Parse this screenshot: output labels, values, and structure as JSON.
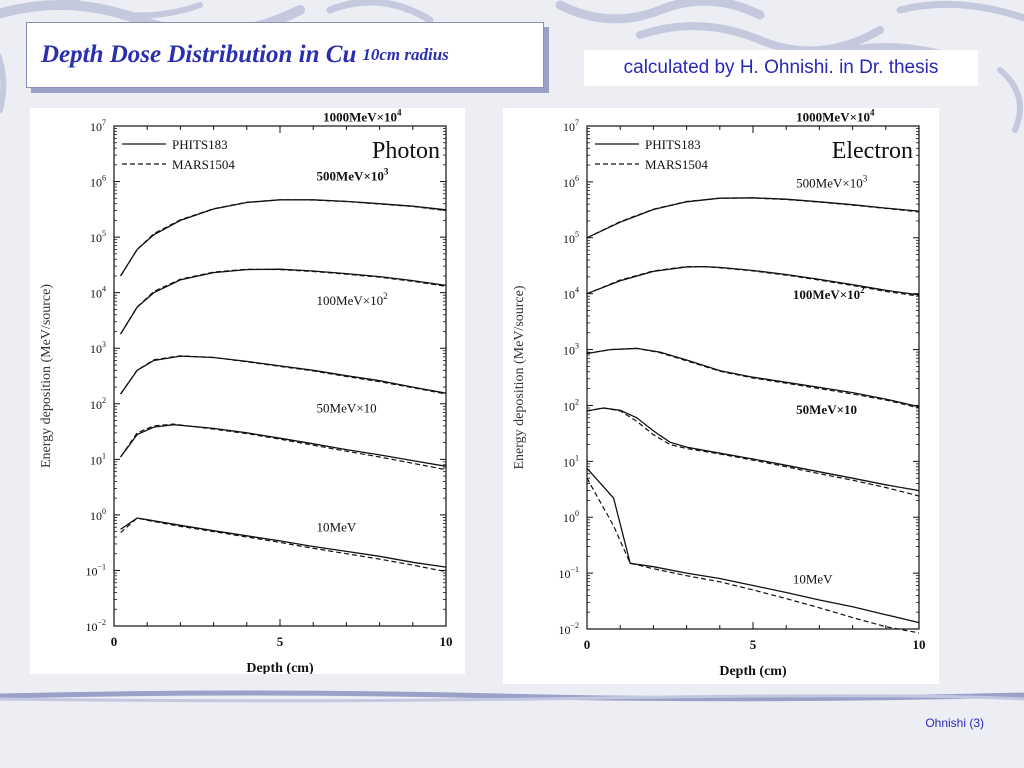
{
  "slide": {
    "title": "Depth Dose Distribution in Cu",
    "title_suffix": "10cm radius",
    "credit": "calculated by H. Ohnishi. in Dr. thesis",
    "footer": "Ohnishi (3)",
    "colors": {
      "title": "#2a2fb0",
      "credit": "#2828b8",
      "background": "#eceef3",
      "accent": "#8a8fb8"
    }
  },
  "chart_data": [
    {
      "type": "line",
      "title": "Photon",
      "xlabel": "Depth (cm)",
      "ylabel": "Energy deposition (MeV/source)",
      "xlim": [
        0,
        10
      ],
      "ylim": [
        0.01,
        10000000
      ],
      "yscale": "log",
      "xticks": [
        "0",
        "5",
        "10"
      ],
      "yticks": [
        {
          "base": "10",
          "exp": "7"
        },
        {
          "base": "10",
          "exp": "6"
        },
        {
          "base": "10",
          "exp": "5"
        },
        {
          "base": "10",
          "exp": "4"
        },
        {
          "base": "10",
          "exp": "3"
        },
        {
          "base": "10",
          "exp": "2"
        },
        {
          "base": "10",
          "exp": "1"
        },
        {
          "base": "10",
          "exp": "0"
        },
        {
          "base": "10",
          "exp": "−1"
        },
        {
          "base": "10",
          "exp": "−2"
        }
      ],
      "legend": [
        "PHITS183",
        "MARS1504"
      ],
      "legend_position": "top-left",
      "curves": [
        {
          "label": "1000MeV×10",
          "label_sup": "4",
          "label_bold": true,
          "label_at": [
            6.3,
            12000000
          ],
          "x": [
            0.2,
            0.7,
            1.2,
            2,
            3,
            4,
            5,
            6,
            7,
            8,
            9,
            10
          ],
          "phits": [
            20000,
            60000,
            110000,
            200000,
            320000,
            420000,
            470000,
            470000,
            440000,
            400000,
            360000,
            310000
          ],
          "mars": [
            20000,
            60000,
            115000,
            205000,
            325000,
            425000,
            470000,
            465000,
            435000,
            395000,
            355000,
            300000
          ]
        },
        {
          "label": "500MeV×10",
          "label_sup": "3",
          "label_bold": true,
          "label_at": [
            6.1,
            1050000
          ],
          "x": [
            0.2,
            0.7,
            1.2,
            2,
            3,
            4,
            5,
            6,
            7,
            8,
            9,
            10
          ],
          "phits": [
            1800,
            5500,
            10000,
            17000,
            23000,
            26000,
            26500,
            24500,
            22000,
            19500,
            16500,
            13500
          ],
          "mars": [
            1800,
            5500,
            10500,
            17500,
            23500,
            26500,
            26000,
            24000,
            21500,
            19000,
            16000,
            13000
          ]
        },
        {
          "label": "100MeV×10",
          "label_sup": "2",
          "label_bold": false,
          "label_at": [
            6.1,
            6000
          ],
          "x": [
            0.2,
            0.7,
            1.2,
            2,
            3,
            4,
            5,
            6,
            7,
            8,
            9,
            10
          ],
          "phits": [
            150,
            400,
            600,
            720,
            680,
            580,
            480,
            400,
            320,
            260,
            200,
            155
          ],
          "mars": [
            150,
            400,
            620,
            730,
            680,
            570,
            470,
            390,
            310,
            250,
            195,
            150
          ]
        },
        {
          "label": "50MeV×10",
          "label_sup": "",
          "label_bold": false,
          "label_at": [
            6.1,
            70
          ],
          "x": [
            0.2,
            0.7,
            1.2,
            1.8,
            3,
            4,
            5,
            6,
            7,
            8,
            9,
            10
          ],
          "phits": [
            11,
            28,
            38,
            42,
            36,
            30,
            24,
            19,
            15,
            12,
            9.5,
            7.5
          ],
          "mars": [
            11,
            30,
            40,
            43,
            35,
            29,
            23,
            18,
            14,
            11,
            8.5,
            6.5
          ]
        },
        {
          "label": "10MeV",
          "label_sup": "",
          "label_bold": false,
          "label_at": [
            6.1,
            0.5
          ],
          "x": [
            0.2,
            0.7,
            1,
            2,
            3,
            4,
            5,
            6,
            7,
            8,
            9,
            10
          ],
          "phits": [
            0.55,
            0.88,
            0.82,
            0.65,
            0.52,
            0.42,
            0.34,
            0.27,
            0.22,
            0.18,
            0.14,
            0.115
          ],
          "mars": [
            0.48,
            0.88,
            0.8,
            0.62,
            0.5,
            0.4,
            0.32,
            0.25,
            0.2,
            0.16,
            0.125,
            0.095
          ]
        }
      ]
    },
    {
      "type": "line",
      "title": "Electron",
      "xlabel": "Depth (cm)",
      "ylabel": "Energy deposition (MeV/source)",
      "xlim": [
        0,
        10
      ],
      "ylim": [
        0.01,
        10000000
      ],
      "yscale": "log",
      "xticks": [
        "0",
        "5",
        "10"
      ],
      "yticks": [
        {
          "base": "10",
          "exp": "7"
        },
        {
          "base": "10",
          "exp": "6"
        },
        {
          "base": "10",
          "exp": "5"
        },
        {
          "base": "10",
          "exp": "4"
        },
        {
          "base": "10",
          "exp": "3"
        },
        {
          "base": "10",
          "exp": "2"
        },
        {
          "base": "10",
          "exp": "1"
        },
        {
          "base": "10",
          "exp": "0"
        },
        {
          "base": "10",
          "exp": "−1"
        },
        {
          "base": "10",
          "exp": "−2"
        }
      ],
      "legend": [
        "PHITS183",
        "MARS1504"
      ],
      "legend_position": "top-left",
      "curves": [
        {
          "label": "1000MeV×10",
          "label_sup": "4",
          "label_bold": true,
          "label_at": [
            6.3,
            12000000
          ],
          "x": [
            0,
            1,
            2,
            3,
            4,
            5,
            6,
            7,
            8,
            9,
            10
          ],
          "phits": [
            100000,
            190000,
            320000,
            440000,
            510000,
            520000,
            490000,
            440000,
            390000,
            340000,
            300000
          ],
          "mars": [
            100000,
            195000,
            325000,
            445000,
            510000,
            515000,
            485000,
            435000,
            385000,
            335000,
            290000
          ]
        },
        {
          "label": "500MeV×10",
          "label_sup": "3",
          "label_bold": false,
          "label_at": [
            6.3,
            800000
          ],
          "x": [
            0,
            1,
            2,
            3,
            3.5,
            4,
            5,
            6,
            7,
            8,
            9,
            10
          ],
          "phits": [
            10000,
            17000,
            25000,
            30000,
            30500,
            29500,
            26000,
            22000,
            18000,
            14500,
            11500,
            9500
          ],
          "mars": [
            10000,
            17500,
            25500,
            30500,
            30500,
            29000,
            25500,
            21500,
            17500,
            14000,
            11000,
            9000
          ]
        },
        {
          "label": "100MeV×10",
          "label_sup": "2",
          "label_bold": true,
          "label_at": [
            6.2,
            8000
          ],
          "x": [
            0,
            0.7,
            1.5,
            2.2,
            3,
            4,
            5,
            6,
            7,
            8,
            9,
            10
          ],
          "phits": [
            850,
            1000,
            1050,
            900,
            650,
            420,
            320,
            260,
            210,
            170,
            130,
            95
          ],
          "mars": [
            850,
            1000,
            1050,
            880,
            630,
            410,
            310,
            250,
            200,
            160,
            125,
            90
          ]
        },
        {
          "label": "50MeV×10",
          "label_sup": "",
          "label_bold": true,
          "label_at": [
            6.3,
            70
          ],
          "x": [
            0,
            0.5,
            1,
            1.5,
            2,
            2.5,
            3,
            4,
            5,
            6,
            7,
            8,
            9,
            10
          ],
          "phits": [
            80,
            90,
            82,
            60,
            35,
            22,
            18,
            14,
            11,
            8.5,
            6.5,
            5,
            3.8,
            3
          ],
          "mars": [
            80,
            90,
            80,
            52,
            30,
            20,
            17,
            13.5,
            10.5,
            8,
            6,
            4.6,
            3.4,
            2.4
          ]
        },
        {
          "label": "10MeV",
          "label_sup": "",
          "label_bold": false,
          "label_at": [
            6.2,
            0.065
          ],
          "x": [
            0,
            0.8,
            1.3,
            2,
            3,
            4,
            5,
            6,
            7,
            8,
            9,
            10
          ],
          "phits": [
            7.5,
            2.2,
            0.15,
            0.13,
            0.1,
            0.08,
            0.06,
            0.045,
            0.033,
            0.025,
            0.018,
            0.013
          ],
          "mars": [
            5,
            0.7,
            0.15,
            0.12,
            0.09,
            0.07,
            0.05,
            0.035,
            0.024,
            0.016,
            0.011,
            0.0085
          ]
        }
      ]
    }
  ]
}
